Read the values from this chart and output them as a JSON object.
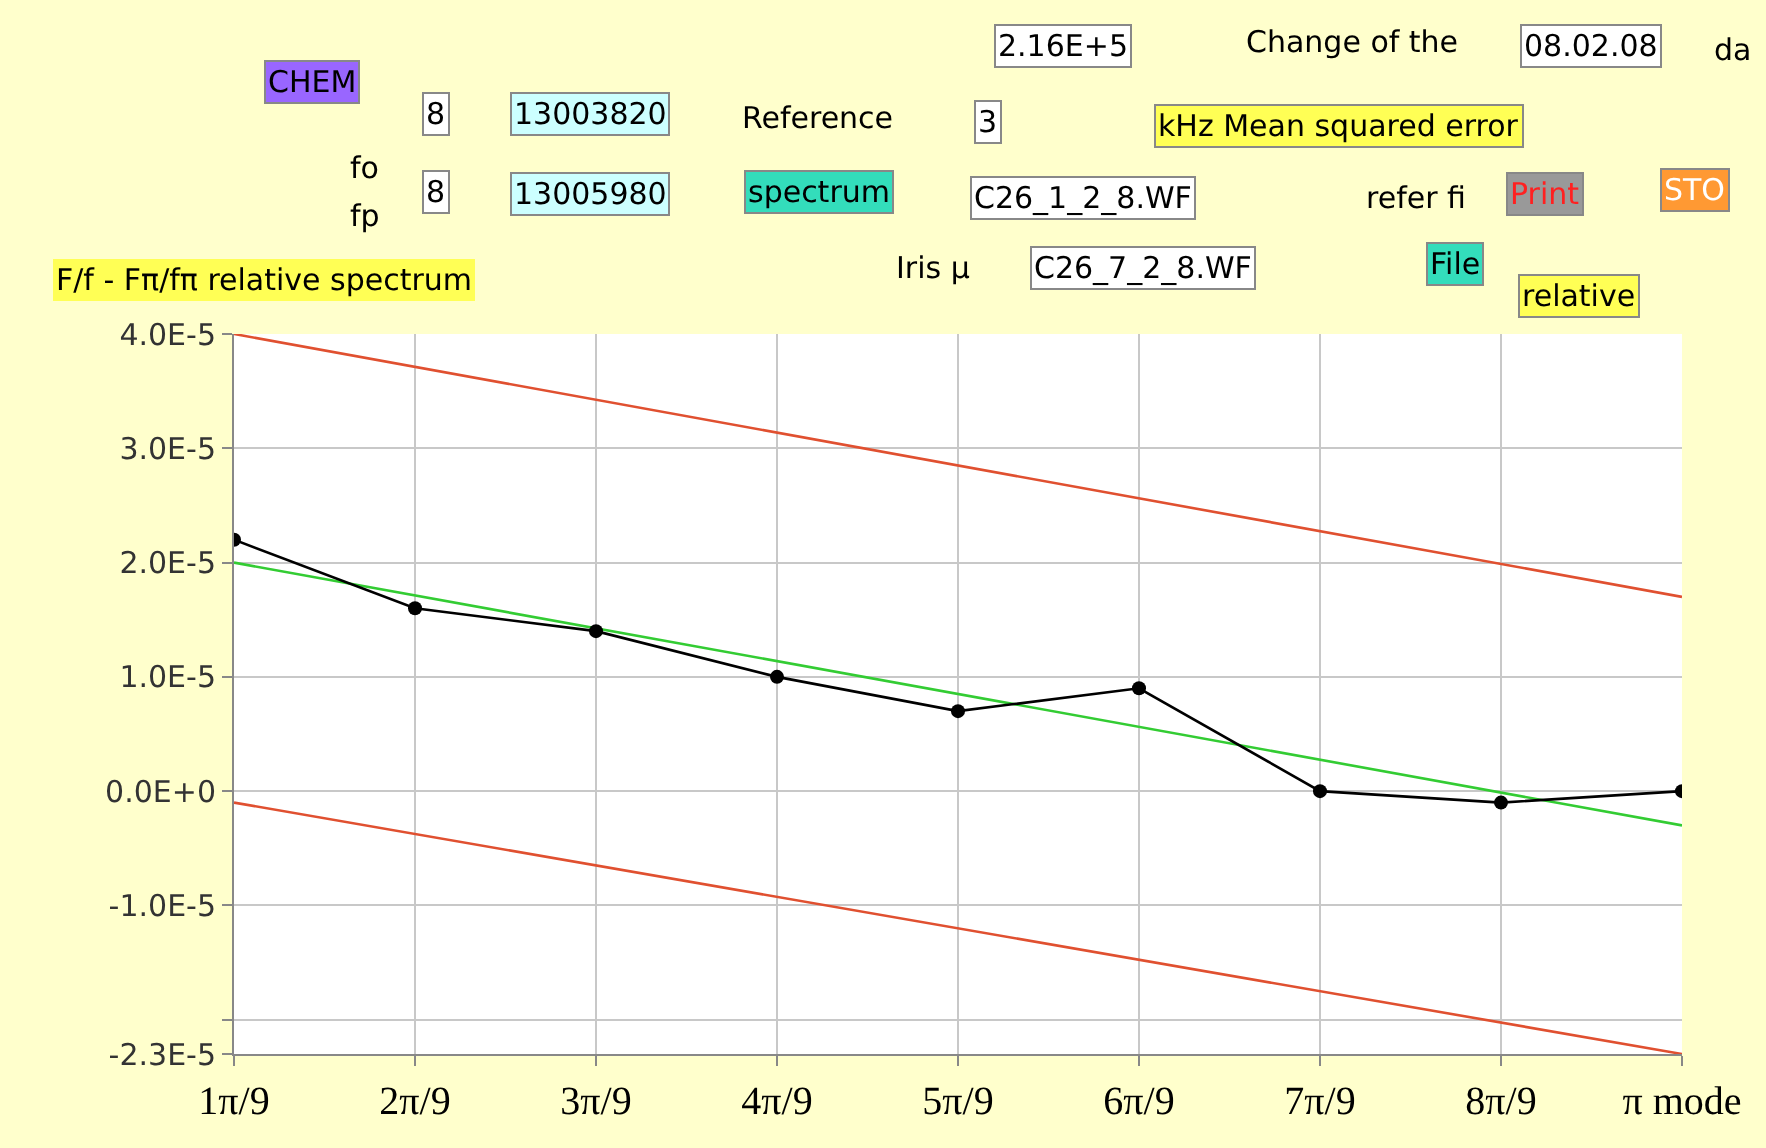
{
  "chart_data": {
    "type": "line",
    "title": "F/f - Fπ/fπ relative spectrum",
    "categories": [
      "1π/9",
      "2π/9",
      "3π/9",
      "4π/9",
      "5π/9",
      "6π/9",
      "7π/9",
      "8π/9",
      "π mode"
    ],
    "ylim": [
      -2.3e-05,
      4e-05
    ],
    "yticks": [
      {
        "value": -2.3e-05,
        "label": "-2.3E-5"
      },
      {
        "value": -2e-05,
        "label": null
      },
      {
        "value": -1e-05,
        "label": "-1.0E-5"
      },
      {
        "value": 0,
        "label": "0.0E+0"
      },
      {
        "value": 1e-05,
        "label": "1.0E-5"
      },
      {
        "value": 2e-05,
        "label": "2.0E-5"
      },
      {
        "value": 3e-05,
        "label": "3.0E-5"
      },
      {
        "value": 4e-05,
        "label": "4.0E-5"
      }
    ],
    "grid": true,
    "series": [
      {
        "color": "#e05030",
        "values": [
          4e-05,
          null,
          null,
          null,
          null,
          null,
          null,
          null,
          1.7e-05
        ],
        "marker": "none"
      },
      {
        "color": "#e05030",
        "values": [
          -1e-06,
          null,
          null,
          null,
          null,
          null,
          null,
          null,
          -2.3e-05
        ],
        "marker": "none"
      },
      {
        "color": "#33cc33",
        "values": [
          2e-05,
          null,
          null,
          null,
          null,
          null,
          null,
          null,
          -3e-06
        ],
        "marker": "none"
      },
      {
        "color": "#000000",
        "values": [
          2.2e-05,
          1.6e-05,
          1.4e-05,
          1e-05,
          7e-06,
          9e-06,
          0.0,
          -1e-06,
          0.0
        ],
        "marker": "circle"
      }
    ],
    "annotations": [
      "CHEM",
      "8",
      "13003820",
      "Reference",
      "spectrum",
      "fo",
      "fp",
      "8",
      "13005980",
      "2.16E+5",
      "Change of the",
      "08.02.08",
      "da",
      "3",
      "kHz Mean squared error",
      "C26_1_2_8.WF",
      "refer fi",
      "Print",
      "STO",
      "Iris μ",
      "C26_7_2_8.WF",
      "File",
      "relative"
    ]
  }
}
